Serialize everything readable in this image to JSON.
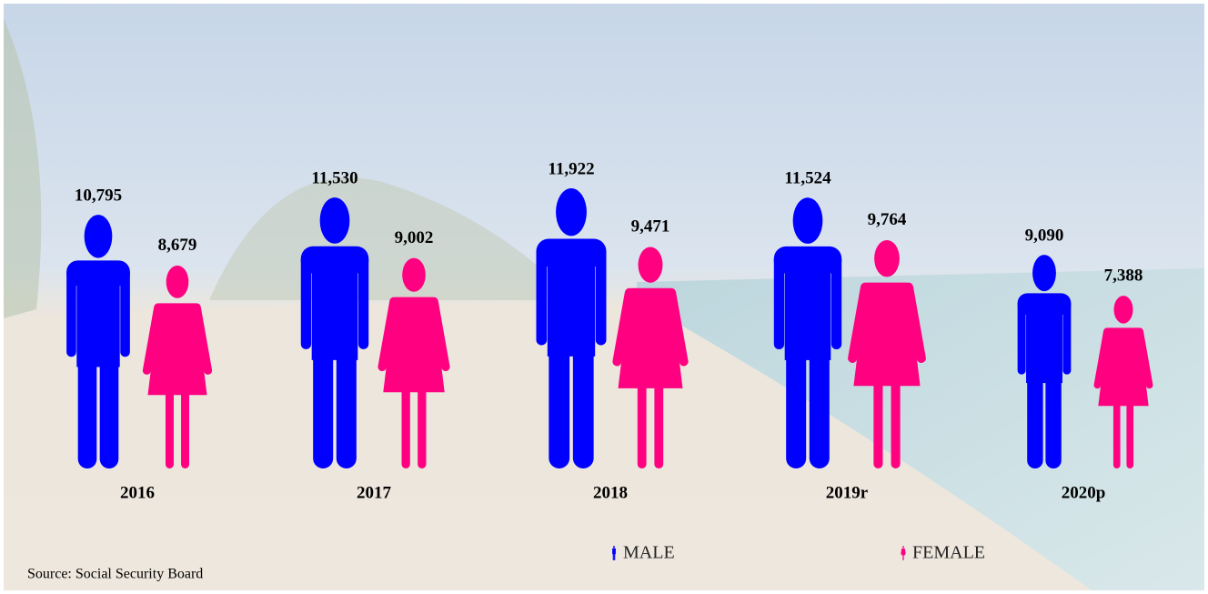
{
  "chart_data": {
    "type": "pictograph",
    "categories": [
      "2016",
      "2017",
      "2018",
      "2019r",
      "2020p"
    ],
    "series": [
      {
        "name": "MALE",
        "color": "#0000ff",
        "values": [
          10795,
          11530,
          11922,
          11524,
          9090
        ],
        "value_labels": [
          "10,795",
          "11,530",
          "11,922",
          "11,524",
          "9,090"
        ]
      },
      {
        "name": "FEMALE",
        "color": "#ff0080",
        "values": [
          8679,
          9002,
          9471,
          9764,
          7388
        ],
        "value_labels": [
          "8,679",
          "9,002",
          "9,471",
          "9,764",
          "7,388"
        ]
      }
    ],
    "source": "Source: Social Security Board"
  }
}
